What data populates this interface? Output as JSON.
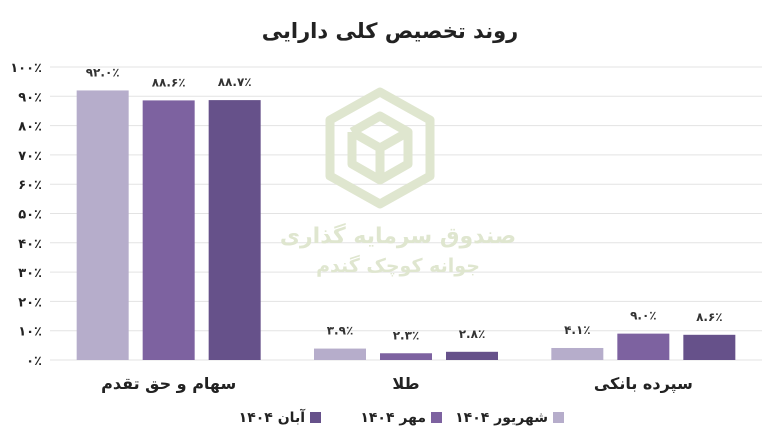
{
  "chart_data": {
    "type": "bar",
    "title": "روند تخصیص کلی دارایی",
    "categories": [
      "سهام و حق تقدم",
      "طلا",
      "سپرده بانکی"
    ],
    "series": [
      {
        "name": "شهریور ۱۴۰۴",
        "values": [
          92.0,
          3.9,
          4.1
        ],
        "labels": [
          "۹۲.۰٪",
          "۳.۹٪",
          "۴.۱٪"
        ],
        "color": "#b6adcb"
      },
      {
        "name": "مهر ۱۴۰۴",
        "values": [
          88.6,
          2.3,
          9.0
        ],
        "labels": [
          "۸۸.۶٪",
          "۲.۳٪",
          "۹.۰٪"
        ],
        "color": "#7d62a0"
      },
      {
        "name": "آبان ۱۴۰۴",
        "values": [
          88.7,
          2.8,
          8.6
        ],
        "labels": [
          "۸۸.۷٪",
          "۲.۸٪",
          "۸.۶٪"
        ],
        "color": "#66518a"
      }
    ],
    "yticks": [
      0,
      10,
      20,
      30,
      40,
      50,
      60,
      70,
      80,
      90,
      100
    ],
    "ytick_labels": [
      "۰٪",
      "۱۰٪",
      "۲۰٪",
      "۳۰٪",
      "۴۰٪",
      "۵۰٪",
      "۶۰٪",
      "۷۰٪",
      "۸۰٪",
      "۹۰٪",
      "۱۰۰٪"
    ],
    "ylim": [
      0,
      100
    ],
    "grid": true,
    "legend_position": "bottom"
  },
  "watermark": {
    "line1": "صندوق سرمایه گذاری",
    "line2": "جوانه کوچک گندم",
    "color": "#dfe6cf"
  }
}
